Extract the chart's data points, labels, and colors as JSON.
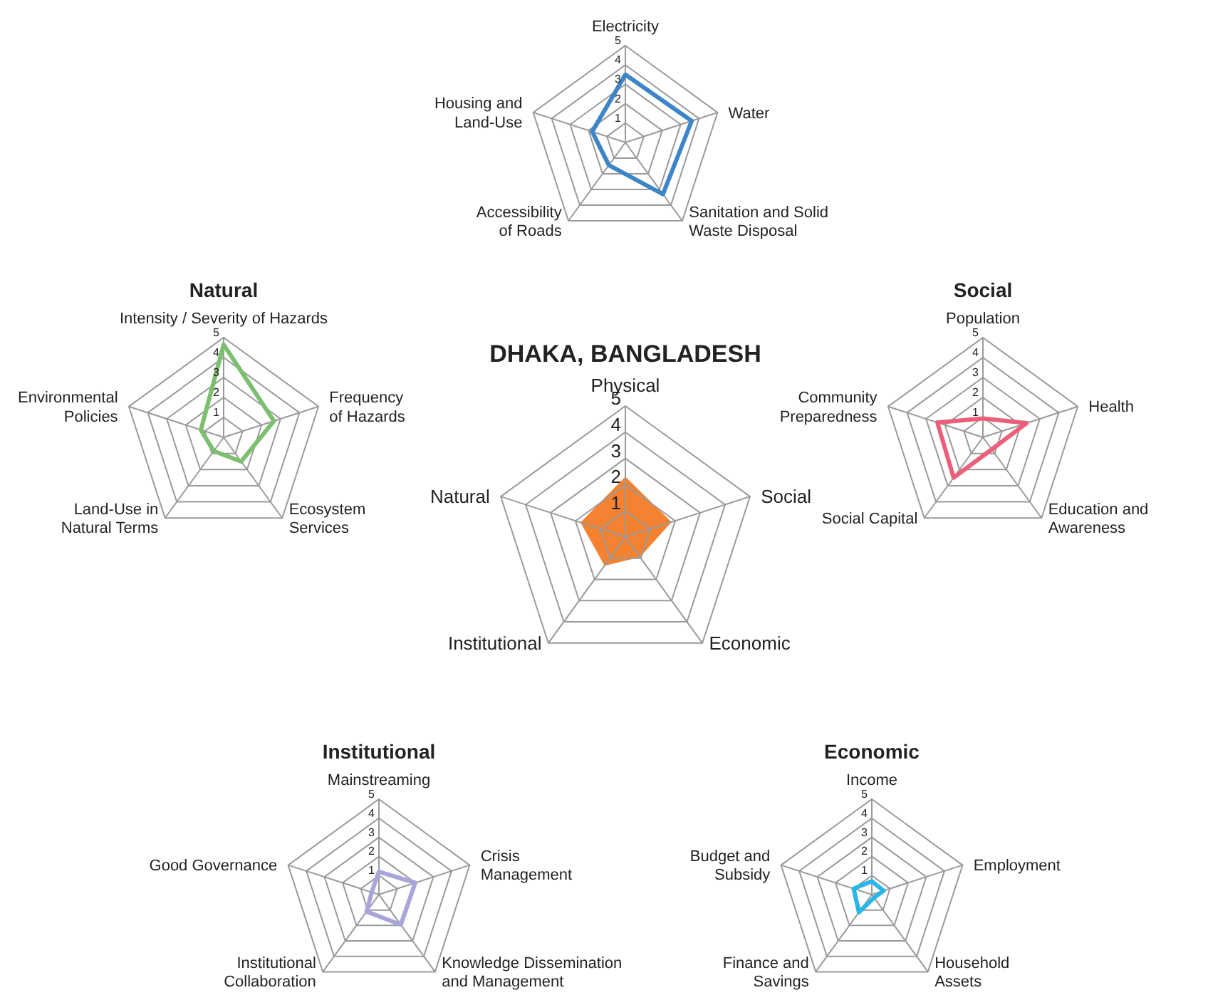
{
  "chart_data": [
    {
      "type": "radar",
      "categories": [
        "Electricity",
        "Water",
        "Sanitation and Solid Waste Disposal",
        "Accessibility of Roads",
        "Housing and Land-Use"
      ],
      "ylim": [
        0,
        5
      ],
      "yticks": [
        1,
        2,
        3,
        4,
        5
      ],
      "series": [
        {
          "color": "#3d85c6",
          "values": [
            3.5,
            3.6,
            3.3,
            1.45,
            1.8
          ]
        }
      ]
    },
    {
      "type": "radar",
      "title": "Natural",
      "categories": [
        "Intensity / Severity of Hazards",
        "Frequency of Hazards",
        "Ecosystem Services",
        "Land-Use in Natural Terms",
        "Environmental Policies"
      ],
      "ylim": [
        0,
        5
      ],
      "yticks": [
        1,
        2,
        3,
        4,
        5
      ],
      "series": [
        {
          "color": "#7cbf6e",
          "values": [
            4.65,
            2.65,
            1.5,
            0.85,
            1.2
          ]
        }
      ]
    },
    {
      "type": "radar",
      "title": "DHAKA, BANGLADESH",
      "categories": [
        "Physical",
        "Social",
        "Economic",
        "Institutional",
        "Natural"
      ],
      "ylim": [
        0,
        5
      ],
      "yticks": [
        1,
        2,
        3,
        4,
        5
      ],
      "series": [
        {
          "type": "area",
          "color": "#f58231",
          "values": [
            2.3,
            1.85,
            0.95,
            1.35,
            1.8
          ]
        }
      ]
    },
    {
      "type": "radar",
      "title": "Social",
      "categories": [
        "Population",
        "Health",
        "Education and Awareness",
        "Social Capital",
        "Community Preparedness"
      ],
      "ylim": [
        0,
        5
      ],
      "yticks": [
        1,
        2,
        3,
        4,
        5
      ],
      "series": [
        {
          "color": "#ec5f7a",
          "values": [
            0.95,
            2.3,
            0.75,
            2.5,
            2.4
          ]
        }
      ]
    },
    {
      "type": "radar",
      "title": "Institutional",
      "categories": [
        "Mainstreaming",
        "Crisis Management",
        "Knowledge Dissemination and Management",
        "Institutional Collaboration",
        "Good Governance"
      ],
      "ylim": [
        0,
        5
      ],
      "yticks": [
        1,
        2,
        3,
        4,
        5
      ],
      "series": [
        {
          "color": "#a9a4d9",
          "values": [
            1.2,
            2.0,
            1.95,
            1.1,
            0.4
          ]
        }
      ]
    },
    {
      "type": "radar",
      "title": "Economic",
      "categories": [
        "Income",
        "Employment",
        "Household Assets",
        "Finance and Savings",
        "Budget and Subsidy"
      ],
      "ylim": [
        0,
        5
      ],
      "yticks": [
        1,
        2,
        3,
        4,
        5
      ],
      "series": [
        {
          "color": "#29b6e8",
          "values": [
            0.7,
            0.65,
            0.2,
            1.15,
            1.0
          ]
        }
      ]
    }
  ]
}
